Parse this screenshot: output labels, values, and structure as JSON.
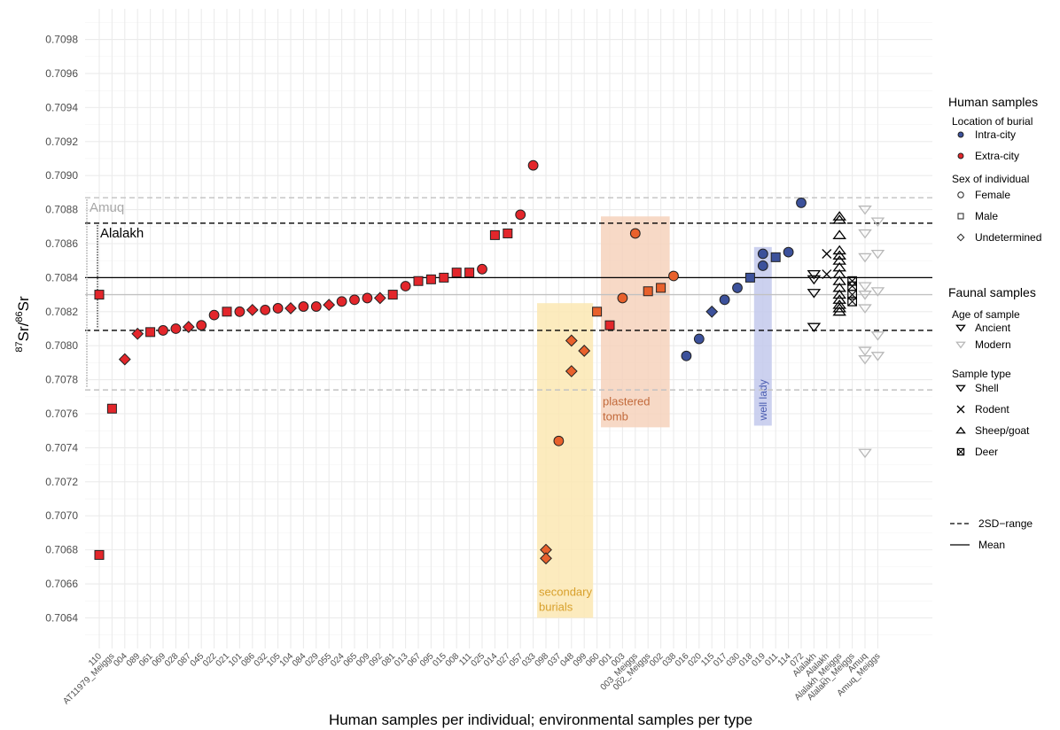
{
  "chart_data": {
    "type": "scatter",
    "xlabel": "Human samples per individual; environmental samples per type",
    "ylabel": {
      "pre": "87",
      "a": "Sr/",
      "sup": "86",
      "b": "Sr"
    },
    "ylim": [
      0.70622,
      0.70998
    ],
    "yticks": [
      "0.7064",
      "0.7066",
      "0.7068",
      "0.7070",
      "0.7072",
      "0.7074",
      "0.7076",
      "0.7078",
      "0.7080",
      "0.7082",
      "0.7084",
      "0.7086",
      "0.7088",
      "0.7090",
      "0.7092",
      "0.7094",
      "0.7096",
      "0.7098"
    ],
    "categories": [
      "110",
      "AT11979_Meiggs",
      "004",
      "089",
      "061",
      "069",
      "028",
      "087",
      "045",
      "022",
      "021",
      "101",
      "086",
      "032",
      "105",
      "104",
      "084",
      "029",
      "055",
      "024",
      "065",
      "009",
      "092",
      "081",
      "013",
      "067",
      "095",
      "015",
      "008",
      "111",
      "025",
      "014",
      "027",
      "057",
      "033",
      "098",
      "037",
      "048",
      "099",
      "060",
      "001",
      "003",
      "003_Meiggs",
      "002_Meiggs",
      "002",
      "038",
      "016",
      "020",
      "115",
      "017",
      "030",
      "018",
      "019",
      "011",
      "114",
      "072",
      "Alalakh",
      "Alalakh ",
      "Alalakh_Meiggs",
      "Alalakh_Meiggs ",
      "Amuq",
      "Amuq_Meiggs"
    ],
    "grid": true,
    "reference_lines": {
      "mean": 0.7084,
      "alalakh_2sd": [
        0.70809,
        0.70872
      ],
      "amuq_2sd": [
        0.70774,
        0.70887
      ],
      "amuq_mean": 0.7083
    },
    "range_labels": {
      "amuq": "Amuq",
      "alalakh": "Alalakh"
    },
    "colors": {
      "intra": "#3c519b",
      "extra": "#e3262b",
      "secondary": "#e8612c",
      "plastered": "#e8612c",
      "ancient": "#000000",
      "modern": "#b8b8b8"
    },
    "human": [
      {
        "x": "110",
        "y": 0.7083,
        "shape": "square",
        "loc": "extra"
      },
      {
        "x": "110",
        "y": 0.70677,
        "shape": "square",
        "loc": "extra"
      },
      {
        "x": "AT11979_Meiggs",
        "y": 0.70763,
        "shape": "square",
        "loc": "extra"
      },
      {
        "x": "004",
        "y": 0.70792,
        "shape": "diamond",
        "loc": "extra"
      },
      {
        "x": "089",
        "y": 0.70807,
        "shape": "diamond",
        "loc": "extra"
      },
      {
        "x": "061",
        "y": 0.70808,
        "shape": "square",
        "loc": "extra"
      },
      {
        "x": "069",
        "y": 0.70809,
        "shape": "circle",
        "loc": "extra"
      },
      {
        "x": "028",
        "y": 0.7081,
        "shape": "circle",
        "loc": "extra"
      },
      {
        "x": "087",
        "y": 0.70811,
        "shape": "diamond",
        "loc": "extra"
      },
      {
        "x": "045",
        "y": 0.70812,
        "shape": "circle",
        "loc": "extra"
      },
      {
        "x": "022",
        "y": 0.70818,
        "shape": "circle",
        "loc": "extra"
      },
      {
        "x": "021",
        "y": 0.7082,
        "shape": "square",
        "loc": "extra"
      },
      {
        "x": "101",
        "y": 0.7082,
        "shape": "circle",
        "loc": "extra"
      },
      {
        "x": "086",
        "y": 0.70821,
        "shape": "diamond",
        "loc": "extra"
      },
      {
        "x": "032",
        "y": 0.70821,
        "shape": "circle",
        "loc": "extra"
      },
      {
        "x": "105",
        "y": 0.70822,
        "shape": "circle",
        "loc": "extra"
      },
      {
        "x": "104",
        "y": 0.70822,
        "shape": "diamond",
        "loc": "extra"
      },
      {
        "x": "084",
        "y": 0.70823,
        "shape": "circle",
        "loc": "extra"
      },
      {
        "x": "029",
        "y": 0.70823,
        "shape": "circle",
        "loc": "extra"
      },
      {
        "x": "055",
        "y": 0.70824,
        "shape": "diamond",
        "loc": "extra"
      },
      {
        "x": "024",
        "y": 0.70826,
        "shape": "circle",
        "loc": "extra"
      },
      {
        "x": "065",
        "y": 0.70827,
        "shape": "circle",
        "loc": "extra"
      },
      {
        "x": "009",
        "y": 0.70828,
        "shape": "circle",
        "loc": "extra"
      },
      {
        "x": "092",
        "y": 0.70828,
        "shape": "diamond",
        "loc": "extra"
      },
      {
        "x": "081",
        "y": 0.7083,
        "shape": "square",
        "loc": "extra"
      },
      {
        "x": "013",
        "y": 0.70835,
        "shape": "circle",
        "loc": "extra"
      },
      {
        "x": "067",
        "y": 0.70838,
        "shape": "square",
        "loc": "extra"
      },
      {
        "x": "095",
        "y": 0.70839,
        "shape": "square",
        "loc": "extra"
      },
      {
        "x": "015",
        "y": 0.7084,
        "shape": "square",
        "loc": "extra"
      },
      {
        "x": "008",
        "y": 0.70843,
        "shape": "square",
        "loc": "extra"
      },
      {
        "x": "111",
        "y": 0.70843,
        "shape": "square",
        "loc": "extra"
      },
      {
        "x": "025",
        "y": 0.70845,
        "shape": "circle",
        "loc": "extra"
      },
      {
        "x": "014",
        "y": 0.70865,
        "shape": "square",
        "loc": "extra"
      },
      {
        "x": "027",
        "y": 0.70866,
        "shape": "square",
        "loc": "extra"
      },
      {
        "x": "057",
        "y": 0.70877,
        "shape": "circle",
        "loc": "extra"
      },
      {
        "x": "033",
        "y": 0.70906,
        "shape": "circle",
        "loc": "extra"
      },
      {
        "x": "098",
        "y": 0.7068,
        "shape": "diamond",
        "loc": "secondary"
      },
      {
        "x": "098",
        "y": 0.70675,
        "shape": "diamond",
        "loc": "secondary"
      },
      {
        "x": "037",
        "y": 0.70744,
        "shape": "circle",
        "loc": "secondary"
      },
      {
        "x": "048",
        "y": 0.70803,
        "shape": "diamond",
        "loc": "secondary"
      },
      {
        "x": "048",
        "y": 0.70785,
        "shape": "diamond",
        "loc": "secondary"
      },
      {
        "x": "099",
        "y": 0.70797,
        "shape": "diamond",
        "loc": "secondary"
      },
      {
        "x": "060",
        "y": 0.7082,
        "shape": "square",
        "loc": "secondary"
      },
      {
        "x": "001",
        "y": 0.70812,
        "shape": "square",
        "loc": "extra"
      },
      {
        "x": "003",
        "y": 0.70828,
        "shape": "circle",
        "loc": "plastered"
      },
      {
        "x": "003_Meiggs",
        "y": 0.70866,
        "shape": "circle",
        "loc": "plastered"
      },
      {
        "x": "002_Meiggs",
        "y": 0.70832,
        "shape": "square",
        "loc": "plastered"
      },
      {
        "x": "002",
        "y": 0.70834,
        "shape": "square",
        "loc": "plastered"
      },
      {
        "x": "038",
        "y": 0.70841,
        "shape": "circle",
        "loc": "plastered"
      },
      {
        "x": "016",
        "y": 0.70794,
        "shape": "circle",
        "loc": "intra"
      },
      {
        "x": "020",
        "y": 0.70804,
        "shape": "circle",
        "loc": "intra"
      },
      {
        "x": "115",
        "y": 0.7082,
        "shape": "diamond",
        "loc": "intra"
      },
      {
        "x": "017",
        "y": 0.70827,
        "shape": "circle",
        "loc": "intra"
      },
      {
        "x": "030",
        "y": 0.70834,
        "shape": "circle",
        "loc": "intra"
      },
      {
        "x": "018",
        "y": 0.7084,
        "shape": "square",
        "loc": "intra"
      },
      {
        "x": "019",
        "y": 0.70847,
        "shape": "circle",
        "loc": "intra"
      },
      {
        "x": "019",
        "y": 0.70854,
        "shape": "circle",
        "loc": "intra"
      },
      {
        "x": "011",
        "y": 0.70852,
        "shape": "square",
        "loc": "intra"
      },
      {
        "x": "114",
        "y": 0.70855,
        "shape": "circle",
        "loc": "intra"
      },
      {
        "x": "072",
        "y": 0.70884,
        "shape": "circle",
        "loc": "intra"
      }
    ],
    "faunal": [
      {
        "x": "Alalakh",
        "y": 0.70842,
        "type": "shell",
        "age": "ancient"
      },
      {
        "x": "Alalakh",
        "y": 0.70839,
        "type": "shell",
        "age": "ancient"
      },
      {
        "x": "Alalakh",
        "y": 0.70831,
        "type": "shell",
        "age": "ancient"
      },
      {
        "x": "Alalakh",
        "y": 0.70811,
        "type": "shell",
        "age": "ancient"
      },
      {
        "x": "Alalakh ",
        "y": 0.70854,
        "type": "rodent",
        "age": "ancient"
      },
      {
        "x": "Alalakh ",
        "y": 0.70842,
        "type": "rodent",
        "age": "ancient"
      },
      {
        "x": "Alalakh_Meiggs",
        "y": 0.70876,
        "type": "sheep",
        "age": "ancient"
      },
      {
        "x": "Alalakh_Meiggs",
        "y": 0.70874,
        "type": "sheep",
        "age": "ancient"
      },
      {
        "x": "Alalakh_Meiggs",
        "y": 0.70865,
        "type": "sheep",
        "age": "ancient"
      },
      {
        "x": "Alalakh_Meiggs",
        "y": 0.70856,
        "type": "sheep",
        "age": "ancient"
      },
      {
        "x": "Alalakh_Meiggs",
        "y": 0.70853,
        "type": "sheep",
        "age": "ancient"
      },
      {
        "x": "Alalakh_Meiggs",
        "y": 0.7085,
        "type": "sheep",
        "age": "ancient"
      },
      {
        "x": "Alalakh_Meiggs",
        "y": 0.70846,
        "type": "sheep",
        "age": "ancient"
      },
      {
        "x": "Alalakh_Meiggs",
        "y": 0.70842,
        "type": "sheep",
        "age": "ancient"
      },
      {
        "x": "Alalakh_Meiggs",
        "y": 0.70838,
        "type": "sheep",
        "age": "ancient"
      },
      {
        "x": "Alalakh_Meiggs",
        "y": 0.70834,
        "type": "sheep",
        "age": "ancient"
      },
      {
        "x": "Alalakh_Meiggs",
        "y": 0.7083,
        "type": "sheep",
        "age": "ancient"
      },
      {
        "x": "Alalakh_Meiggs",
        "y": 0.70827,
        "type": "sheep",
        "age": "ancient"
      },
      {
        "x": "Alalakh_Meiggs",
        "y": 0.70824,
        "type": "sheep",
        "age": "ancient"
      },
      {
        "x": "Alalakh_Meiggs",
        "y": 0.70822,
        "type": "sheep",
        "age": "ancient"
      },
      {
        "x": "Alalakh_Meiggs",
        "y": 0.7082,
        "type": "sheep",
        "age": "ancient"
      },
      {
        "x": "Alalakh_Meiggs ",
        "y": 0.70838,
        "type": "deer",
        "age": "ancient"
      },
      {
        "x": "Alalakh_Meiggs ",
        "y": 0.70835,
        "type": "deer",
        "age": "ancient"
      },
      {
        "x": "Alalakh_Meiggs ",
        "y": 0.7083,
        "type": "deer",
        "age": "ancient"
      },
      {
        "x": "Alalakh_Meiggs ",
        "y": 0.70826,
        "type": "deer",
        "age": "ancient"
      },
      {
        "x": "Amuq",
        "y": 0.7088,
        "type": "shell",
        "age": "modern"
      },
      {
        "x": "Amuq",
        "y": 0.70866,
        "type": "shell",
        "age": "modern"
      },
      {
        "x": "Amuq",
        "y": 0.70852,
        "type": "shell",
        "age": "modern"
      },
      {
        "x": "Amuq",
        "y": 0.70835,
        "type": "shell",
        "age": "modern"
      },
      {
        "x": "Amuq",
        "y": 0.7083,
        "type": "shell",
        "age": "modern"
      },
      {
        "x": "Amuq",
        "y": 0.70822,
        "type": "shell",
        "age": "modern"
      },
      {
        "x": "Amuq",
        "y": 0.70797,
        "type": "shell",
        "age": "modern"
      },
      {
        "x": "Amuq",
        "y": 0.70792,
        "type": "shell",
        "age": "modern"
      },
      {
        "x": "Amuq",
        "y": 0.70737,
        "type": "shell",
        "age": "modern"
      },
      {
        "x": "Amuq_Meiggs",
        "y": 0.70873,
        "type": "shell",
        "age": "modern"
      },
      {
        "x": "Amuq_Meiggs",
        "y": 0.70854,
        "type": "shell",
        "age": "modern"
      },
      {
        "x": "Amuq_Meiggs",
        "y": 0.70832,
        "type": "shell",
        "age": "modern"
      },
      {
        "x": "Amuq_Meiggs",
        "y": 0.70806,
        "type": "shell",
        "age": "modern"
      },
      {
        "x": "Amuq_Meiggs",
        "y": 0.70794,
        "type": "shell",
        "age": "modern"
      }
    ],
    "annotations": [
      {
        "label": [
          "secondary",
          "burials"
        ],
        "x_from": "098",
        "x_to": "099",
        "y_from": 0.7064,
        "y_to": 0.70825,
        "fill": "#fbe7b3",
        "text_color": "#d8a02c"
      },
      {
        "label": [
          "plastered",
          "tomb"
        ],
        "x_from": "001",
        "x_to": "002",
        "y_from": 0.70752,
        "y_to": 0.70876,
        "fill": "#f6d2bc",
        "text_color": "#c26a3c"
      },
      {
        "label": [
          "well lady"
        ],
        "x_from": "019",
        "x_to": "019",
        "y_from": 0.70753,
        "y_to": 0.70858,
        "fill": "#c3c9ec",
        "text_color": "#4a5cb0",
        "vertical": true
      }
    ],
    "legend": {
      "position": "right",
      "human_title": "Human samples",
      "loc_title": "Location of burial",
      "loc_items": [
        "Intra-city",
        "Extra-city"
      ],
      "sex_title": "Sex of individual",
      "sex_items": [
        "Female",
        "Male",
        "Undetermined"
      ],
      "faunal_title": "Faunal samples",
      "age_title": "Age of sample",
      "age_items": [
        "Ancient",
        "Modern"
      ],
      "type_title": "Sample type",
      "type_items": [
        "Shell",
        "Rodent",
        "Sheep/goat",
        "Deer"
      ],
      "line_items": [
        "2SD−range",
        "Mean"
      ]
    }
  }
}
